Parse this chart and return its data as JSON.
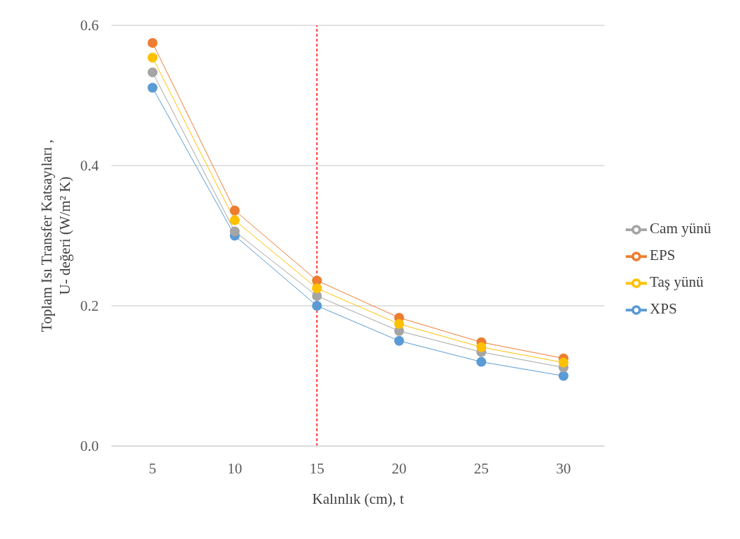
{
  "chart_data": {
    "type": "line",
    "xlabel": "Kalınlık (cm), t",
    "ylabel": "Toplam Isı Transfer Katsayıları ,\nU- değeri (W/m² K)",
    "x": [
      5,
      10,
      15,
      20,
      25,
      30
    ],
    "xlim": [
      2.5,
      32.5
    ],
    "xticks": [
      5,
      10,
      15,
      20,
      25,
      30
    ],
    "ylim": [
      0,
      0.6
    ],
    "yticks": [
      {
        "value": 0,
        "label": "0.0"
      },
      {
        "value": 0.2,
        "label": "0.2"
      },
      {
        "value": 0.4,
        "label": "0.4"
      },
      {
        "value": 0.6,
        "label": "0.6"
      }
    ],
    "series": [
      {
        "name": "XPS",
        "color": "#5b9bd5",
        "values": [
          0.511,
          0.3,
          0.2,
          0.15,
          0.12,
          0.1
        ]
      },
      {
        "name": "EPS",
        "color": "#ed7d31",
        "values": [
          0.575,
          0.336,
          0.236,
          0.183,
          0.148,
          0.125
        ]
      },
      {
        "name": "Cam yünü",
        "color": "#a5a5a5",
        "values": [
          0.533,
          0.306,
          0.214,
          0.164,
          0.134,
          0.112
        ]
      },
      {
        "name": "Taş yünü",
        "color": "#ffc000",
        "values": [
          0.554,
          0.322,
          0.225,
          0.174,
          0.141,
          0.119
        ]
      }
    ],
    "ref_lines": [
      {
        "axis": "x",
        "value": 15,
        "color": "#ff0000",
        "line_style": "dashed"
      }
    ],
    "grid": "y",
    "legend": "right",
    "marker": "circle",
    "line_style": "solid"
  }
}
